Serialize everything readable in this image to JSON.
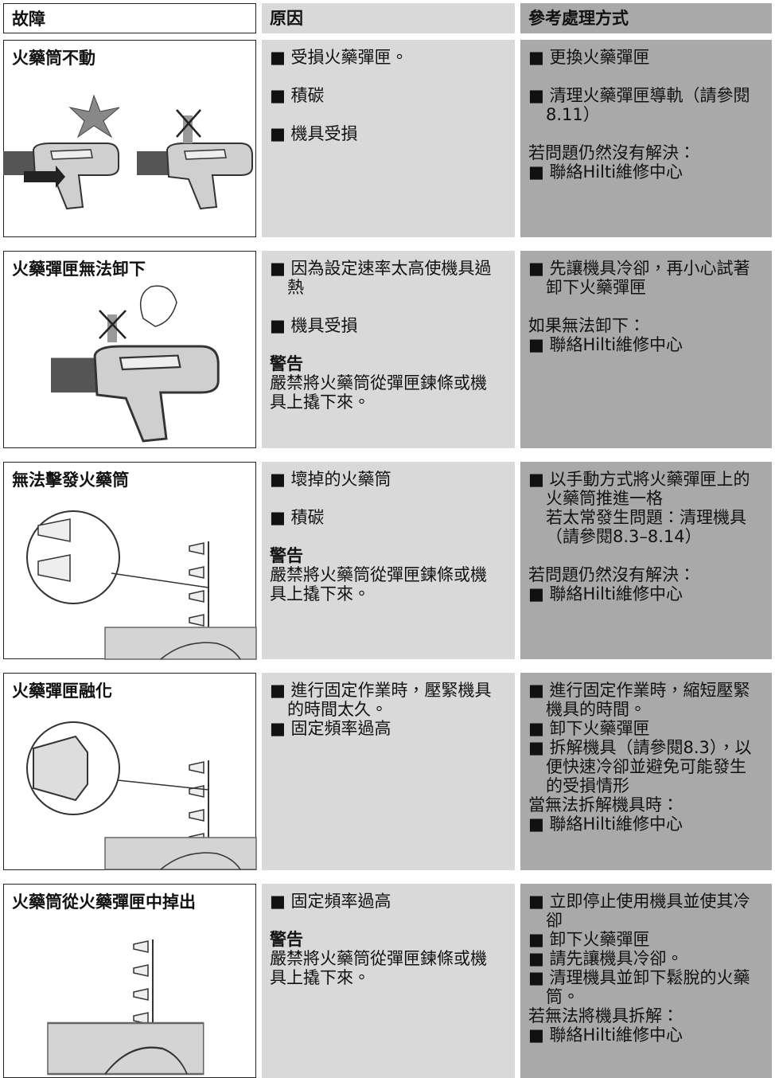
{
  "header": {
    "fault": "故障",
    "cause": "原因",
    "solution": "參考處理方式"
  },
  "rows": [
    {
      "fault": "火藥筒不動",
      "causes": [
        {
          "items": [
            [
              "■ 受損火藥彈匣。"
            ]
          ]
        },
        {
          "items": [
            [
              "■ 積碳"
            ]
          ]
        },
        {
          "items": [
            [
              "■ 機具受損"
            ]
          ]
        }
      ],
      "solutions": [
        {
          "items": [
            [
              "■ 更換火藥彈匣"
            ]
          ]
        },
        {
          "items": [
            [
              "■ 清理火藥彈匣導軌（請參閱",
              "8.11）"
            ]
          ]
        },
        {
          "items": [
            [
              "若問題仍然沒有解決："
            ],
            [
              "■ 聯絡Hilti維修中心"
            ]
          ]
        }
      ]
    },
    {
      "fault": "火藥彈匣無法卸下",
      "causes": [
        {
          "items": [
            [
              "■ 因為設定速率太高使機具過",
              "熱"
            ]
          ]
        },
        {
          "items": [
            [
              "■ 機具受損"
            ]
          ]
        },
        {
          "heading": "警告",
          "items": [
            [
              "嚴禁將火藥筒從彈匣鍊條或機",
              "具上撬下來。"
            ]
          ]
        }
      ],
      "solutions": [
        {
          "items": [
            [
              "■ 先讓機具冷卻，再小心試著",
              "卸下火藥彈匣"
            ]
          ]
        },
        {
          "items": [
            [
              "如果無法卸下："
            ],
            [
              "■ 聯絡Hilti維修中心"
            ]
          ]
        }
      ]
    },
    {
      "fault": "無法擊發火藥筒",
      "causes": [
        {
          "items": [
            [
              "■ 壞掉的火藥筒"
            ]
          ]
        },
        {
          "items": [
            [
              "■ 積碳"
            ]
          ]
        },
        {
          "heading": "警告",
          "items": [
            [
              "嚴禁將火藥筒從彈匣鍊條或機",
              "具上撬下來。"
            ]
          ]
        }
      ],
      "solutions": [
        {
          "items": [
            [
              "■ 以手動方式將火藥彈匣上的",
              "火藥筒推進一格",
              "若太常發生問題：清理機具",
              "（請參閱8.3–8.14）"
            ]
          ]
        },
        {
          "items": [
            [
              "若問題仍然沒有解決："
            ],
            [
              "■  聯絡Hilti維修中心"
            ]
          ]
        }
      ]
    },
    {
      "fault": "火藥彈匣融化",
      "causes": [
        {
          "items": [
            [
              "■ 進行固定作業時，壓緊機具",
              "的時間太久。"
            ],
            [
              "■ 固定頻率過高"
            ]
          ]
        }
      ],
      "solutions": [
        {
          "items": [
            [
              "■ 進行固定作業時，縮短壓緊",
              "機具的時間。"
            ],
            [
              "■ 卸下火藥彈匣"
            ],
            [
              "■ 拆解機具（請參閱8.3），以",
              "便快速冷卻並避免可能發生",
              "的受損情形"
            ],
            [
              "當無法拆解機具時："
            ],
            [
              "■ 聯絡Hilti維修中心"
            ]
          ]
        }
      ]
    },
    {
      "fault": "火藥筒從火藥彈匣中掉出",
      "causes": [
        {
          "items": [
            [
              "■ 固定頻率過高"
            ]
          ]
        },
        {
          "heading": "警告",
          "items": [
            [
              "嚴禁將火藥筒從彈匣鍊條或機",
              "具上撬下來。"
            ]
          ]
        }
      ],
      "solutions": [
        {
          "items": [
            [
              "■ 立即停止使用機具並使其冷",
              "卻"
            ],
            [
              "■ 卸下火藥彈匣"
            ],
            [
              "■ 請先讓機具冷卻。"
            ],
            [
              "■ 清理機具並卸下鬆脫的火藥",
              "筒。"
            ],
            [
              "若無法將機具拆解："
            ],
            [
              "■ 聯絡Hilti維修中心"
            ]
          ]
        }
      ]
    }
  ]
}
